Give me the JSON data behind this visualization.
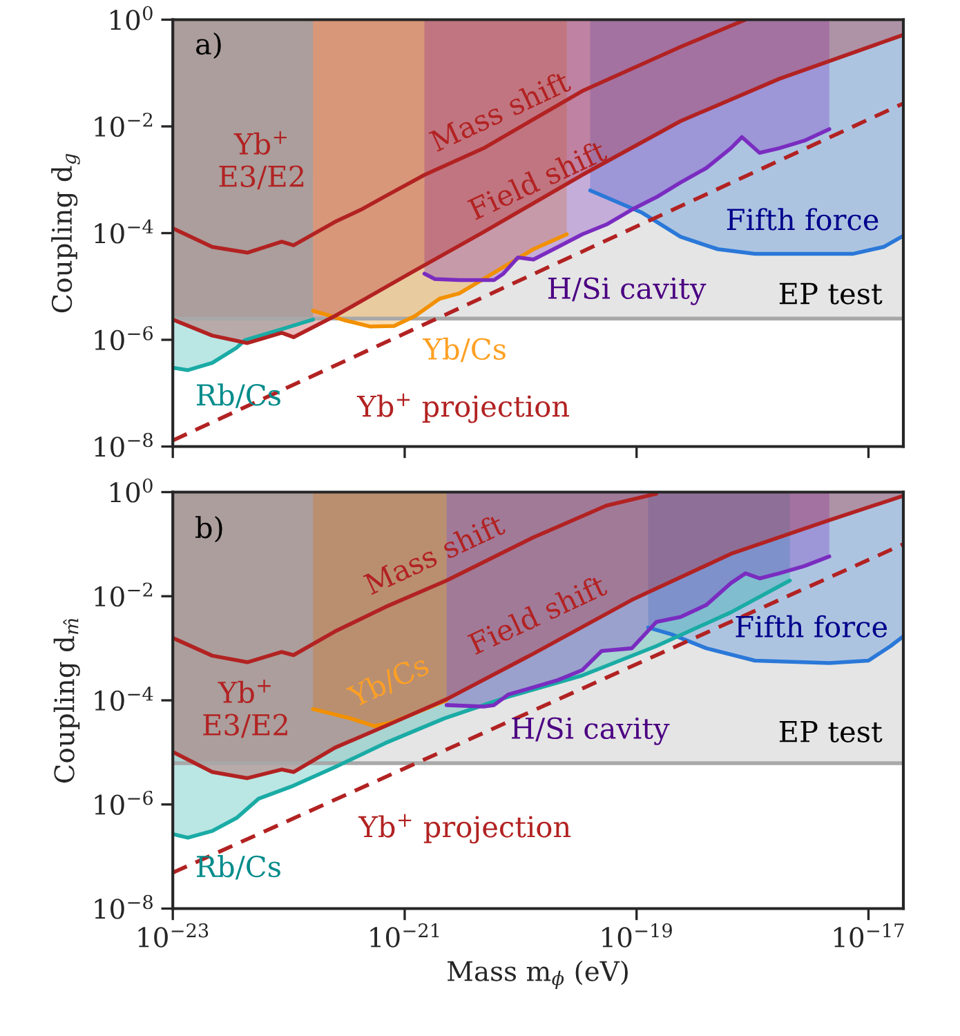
{
  "chart_data": [
    {
      "type": "line",
      "ylabel": "Coupling d$_{g}$",
      "xlim": [
        1e-23,
        2e-17
      ],
      "ylim": [
        1e-08,
        1
      ],
      "log": "xy",
      "grid": false,
      "legend": false,
      "tick_labels": "y",
      "xticks": [
        {
          "value": 1e-23,
          "label": null
        },
        {
          "value": 1e-21,
          "label": null
        },
        {
          "value": 1e-19,
          "label": null
        },
        {
          "value": 1e-17,
          "label": null
        }
      ],
      "yticks": [
        {
          "value": 1e-08,
          "label": "10$^{−8}$"
        },
        {
          "value": 1e-06,
          "label": "10$^{−6}$"
        },
        {
          "value": 0.0001,
          "label": "10$^{−4}$"
        },
        {
          "value": 0.01,
          "label": "10$^{−2}$"
        },
        {
          "value": 1,
          "label": "10$^{0}$"
        }
      ],
      "series": [
        {
          "color": "#a8a8a8",
          "x": [
            1e-23,
            2e-17
          ],
          "values": [
            2.5e-06,
            2.5e-06
          ],
          "lower": [
            2.5e-06,
            2.5e-06
          ],
          "upper": [
            1,
            1
          ]
        },
        {
          "color": "#2a78d8",
          "x": [
            3.98e-20,
            1.1e-19,
            2.4e-19,
            5.01e-19,
            1.05e-18,
            2.82e-18,
            7.41e-18,
            1.35e-17,
            2e-17
          ],
          "values": [
            0.00063,
            0.000245,
            8.5e-05,
            5e-05,
            4.1e-05,
            4.1e-05,
            4.1e-05,
            5.5e-05,
            8.9e-05
          ],
          "lower": [
            0.00063,
            0.000245,
            8.5e-05,
            5e-05,
            4.1e-05,
            4.1e-05,
            4.1e-05,
            5.5e-05,
            8.9e-05
          ],
          "upper": [
            1,
            1,
            1,
            1,
            1,
            1,
            1,
            1,
            1
          ]
        },
        {
          "color": "#1aaba5",
          "x": [
            1e-23,
            1.35e-23,
            2.19e-23,
            3.55e-23,
            4.17e-23,
            8.7e-23,
            1.62e-22
          ],
          "values": [
            3e-07,
            2.7e-07,
            3.7e-07,
            7.1e-07,
            9.8e-07,
            1.58e-06,
            2.4e-06
          ],
          "lower": [
            3e-07,
            2.7e-07,
            3.7e-07,
            7.1e-07,
            9.8e-07,
            1.58e-06,
            2.4e-06
          ],
          "upper": [
            1,
            1,
            1,
            1,
            1,
            1,
            1
          ]
        },
        {
          "color": "#f29000",
          "x": [
            1.62e-22,
            2.29e-22,
            3.09e-22,
            5e-22,
            8.1e-22,
            1.23e-21,
            2e-21,
            2.95e-21,
            4.8e-21,
            7.8e-21,
            1.29e-20,
            2.5e-20
          ],
          "values": [
            3.5e-06,
            2.8e-06,
            2.3e-06,
            1.78e-06,
            1.82e-06,
            2.8e-06,
            5.9e-06,
            7.4e-06,
            1.38e-05,
            2.6e-05,
            5e-05,
            9.5e-05
          ],
          "lower": [
            3.5e-06,
            2.8e-06,
            2.3e-06,
            1.78e-06,
            1.82e-06,
            2.8e-06,
            5.9e-06,
            7.4e-06,
            1.38e-05,
            2.6e-05,
            5e-05,
            9.5e-05
          ],
          "upper": [
            1,
            1,
            1,
            1,
            1,
            1,
            1,
            1,
            1,
            1,
            1,
            1
          ]
        },
        {
          "color": "#7a2cc0",
          "x": [
            1.48e-21,
            1.82e-21,
            2.95e-21,
            5.9e-21,
            7.1e-21,
            9.5e-21,
            1.29e-20,
            2.1e-20,
            3.4e-20,
            5.5e-20,
            9.1e-20,
            1.48e-19,
            2.4e-19,
            4e-19,
            6.5e-19,
            8.1e-19,
            1.15e-18,
            1.7e-18,
            2.8e-18,
            4.6e-18
          ],
          "values": [
            1.74e-05,
            1.38e-05,
            1.32e-05,
            1.32e-05,
            1.74e-05,
            3.5e-05,
            3.2e-05,
            5.5e-05,
            9.5e-05,
            0.000145,
            0.000275,
            0.00047,
            0.00089,
            0.00166,
            0.0039,
            0.0063,
            0.0032,
            0.0039,
            0.0054,
            0.0089
          ],
          "lower": [
            1.74e-05,
            1.38e-05,
            1.32e-05,
            1.32e-05,
            1.74e-05,
            3.5e-05,
            3.2e-05,
            5.5e-05,
            9.5e-05,
            0.000145,
            0.000275,
            0.00047,
            0.00089,
            0.00166,
            0.0039,
            0.0063,
            0.0032,
            0.0039,
            0.0054,
            0.0089
          ],
          "upper": [
            1,
            1,
            1,
            1,
            1,
            1,
            1,
            1,
            1,
            1,
            1,
            1,
            1,
            1,
            1,
            1,
            1,
            1,
            1,
            1
          ]
        },
        {
          "color": "#b22222",
          "x": [
            1e-23,
            2.19e-23,
            4.4e-23,
            8.7e-23,
            1.1e-22,
            2.5e-22,
            4.6e-22,
            1.1e-21,
            4.8e-21,
            3.4e-20,
            2.4e-19,
            1.7e-18,
            2e-17
          ],
          "values": [
            2.4e-06,
            1.2e-06,
            8.7e-07,
            1.35e-06,
            1.12e-06,
            2.8e-06,
            5.9e-06,
            1.74e-05,
            0.000105,
            0.00123,
            0.0126,
            0.078,
            0.52
          ],
          "lower": [
            2.4e-06,
            1.2e-06,
            8.7e-07,
            1.35e-06,
            1.12e-06,
            2.8e-06,
            5.9e-06,
            1.74e-05,
            0.000105,
            0.00123,
            0.0126,
            0.078,
            0.52
          ],
          "upper": [
            1,
            1,
            1,
            1,
            1,
            1,
            1,
            1,
            1,
            1,
            1,
            1,
            1
          ]
        },
        {
          "color": "#b22222",
          "x": [
            1e-23,
            2.19e-23,
            4.4e-23,
            8.7e-23,
            1.1e-22,
            2.5e-22,
            4.2e-22,
            6.8e-22,
            1.48e-21,
            4.8e-21,
            3.4e-20,
            2.4e-19,
            8.7e-19
          ],
          "values": [
            0.000123,
            5.5e-05,
            4.3e-05,
            6.9e-05,
            5.9e-05,
            0.000162,
            0.000275,
            0.00049,
            0.00123,
            0.0039,
            0.046,
            0.31,
            1
          ]
        },
        {
          "color": "#b22222",
          "line_style": "dashed",
          "x": [
            1e-23,
            2e-17
          ],
          "values": [
            1.3e-08,
            0.027
          ]
        }
      ],
      "annotations": [
        "a)",
        "Mass shift",
        "Field shift",
        "Yb$^{+}$\nE3/E2",
        "Fifth force",
        "H/Si cavity",
        "EP test",
        "Yb/Cs",
        "Rb/Cs",
        "Yb$^{+}$ projection"
      ]
    },
    {
      "type": "line",
      "ylabel": "Coupling d$_{m̂}$",
      "xlabel": "Mass m$_{ϕ}$ (eV)",
      "xlim": [
        1e-23,
        2e-17
      ],
      "ylim": [
        1e-08,
        1
      ],
      "log": "xy",
      "grid": false,
      "legend": false,
      "xticks": [
        {
          "value": 1e-23,
          "label": "10$^{−23}$"
        },
        {
          "value": 1e-21,
          "label": "10$^{−21}$"
        },
        {
          "value": 1e-19,
          "label": "10$^{−19}$"
        },
        {
          "value": 1e-17,
          "label": "10$^{−17}$"
        }
      ],
      "yticks": [
        {
          "value": 1e-08,
          "label": "10$^{−8}$"
        },
        {
          "value": 1e-06,
          "label": "10$^{−6}$"
        },
        {
          "value": 0.0001,
          "label": "10$^{−4}$"
        },
        {
          "value": 0.01,
          "label": "10$^{−2}$"
        },
        {
          "value": 1,
          "label": "10$^{0}$"
        }
      ],
      "series": [
        {
          "color": "#a8a8a8",
          "x": [
            1e-23,
            2e-17
          ],
          "values": [
            6.2e-06,
            6.2e-06
          ],
          "lower": [
            6.2e-06,
            6.2e-06
          ],
          "upper": [
            1,
            1
          ]
        },
        {
          "color": "#2a78d8",
          "x": [
            1.26e-19,
            2e-19,
            4e-19,
            1.05e-18,
            4.6e-18,
            1e-17,
            1.55e-17,
            2e-17
          ],
          "values": [
            0.0025,
            0.00186,
            0.001,
            0.00058,
            0.00052,
            0.00058,
            0.0011,
            0.0017
          ],
          "lower": [
            0.0025,
            0.00186,
            0.001,
            0.00058,
            0.00052,
            0.00058,
            0.0011,
            0.0017
          ],
          "upper": [
            1,
            1,
            1,
            1,
            1,
            1,
            1,
            1
          ]
        },
        {
          "color": "#1aaba5",
          "x": [
            1e-23,
            1.35e-23,
            2.19e-23,
            3.55e-23,
            5.5e-23,
            1.05e-22,
            2.5e-22,
            6.8e-22,
            2.2e-21,
            7.8e-21,
            3.4e-20,
            1.48e-19,
            6.5e-19,
            2.1e-18
          ],
          "values": [
            2.7e-07,
            2.3e-07,
            3.1e-07,
            5.5e-07,
            1.29e-06,
            2.2e-06,
            5.2e-06,
            1.51e-05,
            4.5e-05,
            0.000117,
            0.0003,
            0.0011,
            0.0049,
            0.02
          ],
          "lower": [
            2.7e-07,
            2.3e-07,
            3.1e-07,
            5.5e-07,
            1.29e-06,
            2.2e-06,
            5.2e-06,
            1.51e-05,
            4.5e-05,
            0.000117,
            0.0003,
            0.0011,
            0.0049,
            0.02
          ],
          "upper": [
            1,
            1,
            1,
            1,
            1,
            1,
            1,
            1,
            1,
            1,
            1,
            1,
            1,
            1
          ]
        },
        {
          "color": "#f29000",
          "x": [
            1.62e-22,
            3.4e-22,
            5.5e-22,
            7.9e-22,
            2.3e-21
          ],
          "values": [
            6.8e-05,
            4.5e-05,
            3.2e-05,
            3.8e-05,
            0.0001
          ],
          "lower": [
            6.8e-05,
            4.5e-05,
            3.2e-05,
            3.8e-05,
            0.0001
          ],
          "upper": [
            1,
            1,
            1,
            1,
            1
          ]
        },
        {
          "color": "#7a2cc0",
          "x": [
            2.3e-21,
            4.8e-21,
            5.9e-21,
            7.8e-21,
            1.29e-20,
            2.1e-20,
            3.4e-20,
            5e-20,
            9.1e-20,
            1.48e-19,
            2.4e-19,
            4e-19,
            6.5e-19,
            8.7e-19,
            1.15e-18,
            1.7e-18,
            2.8e-18,
            4.6e-18
          ],
          "values": [
            8.1e-05,
            7.6e-05,
            8.1e-05,
            0.000129,
            0.000178,
            0.000245,
            0.00038,
            0.00089,
            0.001,
            0.0032,
            0.004,
            0.0068,
            0.0178,
            0.0275,
            0.022,
            0.0275,
            0.038,
            0.058
          ],
          "lower": [
            8.1e-05,
            7.6e-05,
            8.1e-05,
            0.000129,
            0.000178,
            0.000245,
            0.00038,
            0.00089,
            0.001,
            0.0032,
            0.004,
            0.0068,
            0.0178,
            0.0275,
            0.022,
            0.0275,
            0.038,
            0.058
          ],
          "upper": [
            1,
            1,
            1,
            1,
            1,
            1,
            1,
            1,
            1,
            1,
            1,
            1,
            1,
            1,
            1,
            1,
            1,
            1
          ]
        },
        {
          "color": "#b22222",
          "x": [
            1e-23,
            2.19e-23,
            4.4e-23,
            8.7e-23,
            1.1e-22,
            2.5e-22,
            6.8e-22,
            2.3e-21,
            1.29e-20,
            9.1e-20,
            6.5e-19,
            4.6e-18,
            2e-17
          ],
          "values": [
            1.02e-05,
            4.2e-06,
            3.2e-06,
            4.7e-06,
            4.2e-06,
            1.23e-05,
            3.2e-05,
            0.000105,
            0.00079,
            0.0085,
            0.065,
            0.29,
            0.85
          ],
          "lower": [
            1.02e-05,
            4.2e-06,
            3.2e-06,
            4.7e-06,
            4.2e-06,
            1.23e-05,
            3.2e-05,
            0.000105,
            0.00079,
            0.0085,
            0.065,
            0.29,
            0.85
          ],
          "upper": [
            1,
            1,
            1,
            1,
            1,
            1,
            1,
            1,
            1,
            1,
            1,
            1,
            1
          ]
        },
        {
          "color": "#b22222",
          "x": [
            1e-23,
            2.19e-23,
            4.4e-23,
            8.7e-23,
            1.1e-22,
            2.5e-22,
            6.8e-22,
            2.3e-21,
            1.29e-20,
            5.5e-20,
            1.48e-19
          ],
          "values": [
            0.00158,
            0.00072,
            0.00054,
            0.00085,
            0.00074,
            0.0021,
            0.0062,
            0.02,
            0.135,
            0.55,
            0.93
          ]
        },
        {
          "color": "#b22222",
          "line_style": "dashed",
          "x": [
            1e-23,
            2e-17
          ],
          "values": [
            4.9e-08,
            0.1
          ]
        }
      ],
      "annotations": [
        "b)",
        "Mass shift",
        "Field shift",
        "Yb$^{+}$\nE3/E2",
        "Fifth force",
        "H/Si cavity",
        "EP test",
        "Yb/Cs",
        "Rb/Cs",
        "Yb$^{+}$ projection"
      ]
    }
  ]
}
